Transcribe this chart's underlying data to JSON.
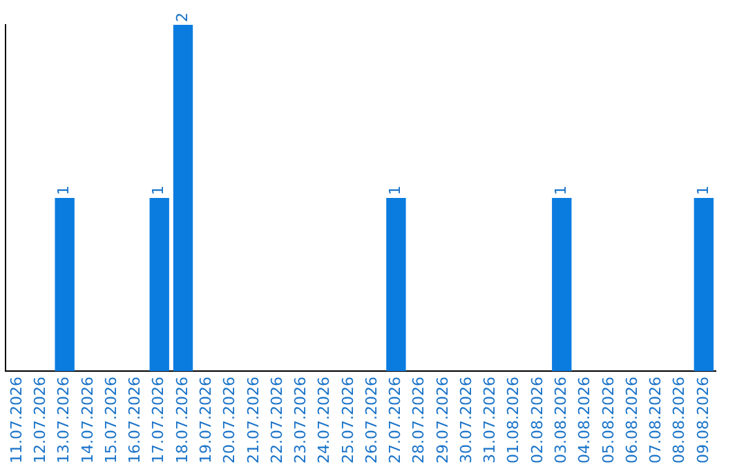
{
  "chart_data": {
    "type": "bar",
    "categories": [
      "11.07.2026",
      "12.07.2026",
      "13.07.2026",
      "14.07.2026",
      "15.07.2026",
      "16.07.2026",
      "17.07.2026",
      "18.07.2026",
      "19.07.2026",
      "20.07.2026",
      "21.07.2026",
      "22.07.2026",
      "23.07.2026",
      "24.07.2026",
      "25.07.2026",
      "26.07.2026",
      "27.07.2026",
      "28.07.2026",
      "29.07.2026",
      "30.07.2026",
      "31.07.2026",
      "01.08.2026",
      "02.08.2026",
      "03.08.2026",
      "04.08.2026",
      "05.08.2026",
      "06.08.2026",
      "07.08.2026",
      "08.08.2026",
      "09.08.2026"
    ],
    "values": [
      0,
      0,
      1,
      0,
      0,
      0,
      1,
      2,
      0,
      0,
      0,
      0,
      0,
      0,
      0,
      0,
      1,
      0,
      0,
      0,
      0,
      0,
      0,
      1,
      0,
      0,
      0,
      0,
      0,
      1
    ],
    "value_labels": [
      null,
      null,
      "1",
      null,
      null,
      null,
      "1",
      "2",
      null,
      null,
      null,
      null,
      null,
      null,
      null,
      null,
      "1",
      null,
      null,
      null,
      null,
      null,
      null,
      "1",
      null,
      null,
      null,
      null,
      null,
      "1"
    ],
    "color": "#0a7ce0",
    "grid": false,
    "tick_labels": "x"
  }
}
